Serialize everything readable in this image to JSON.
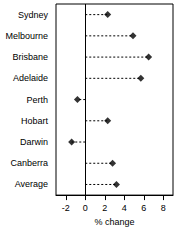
{
  "chart_data": {
    "type": "scatter",
    "orientation": "horizontal",
    "categories": [
      "Sydney",
      "Melbourne",
      "Brisbane",
      "Adelaide",
      "Perth",
      "Hobart",
      "Darwin",
      "Canberra",
      "Average"
    ],
    "values": [
      2.3,
      4.9,
      6.5,
      5.7,
      -0.8,
      2.3,
      -1.4,
      2.8,
      3.2
    ],
    "x_label": "% change",
    "xlim": [
      -3,
      9
    ],
    "xticks": [
      -2,
      0,
      2,
      4,
      6,
      8
    ],
    "color": "#000000",
    "marker": "diamond",
    "line_style": "dashed",
    "grid": false
  }
}
